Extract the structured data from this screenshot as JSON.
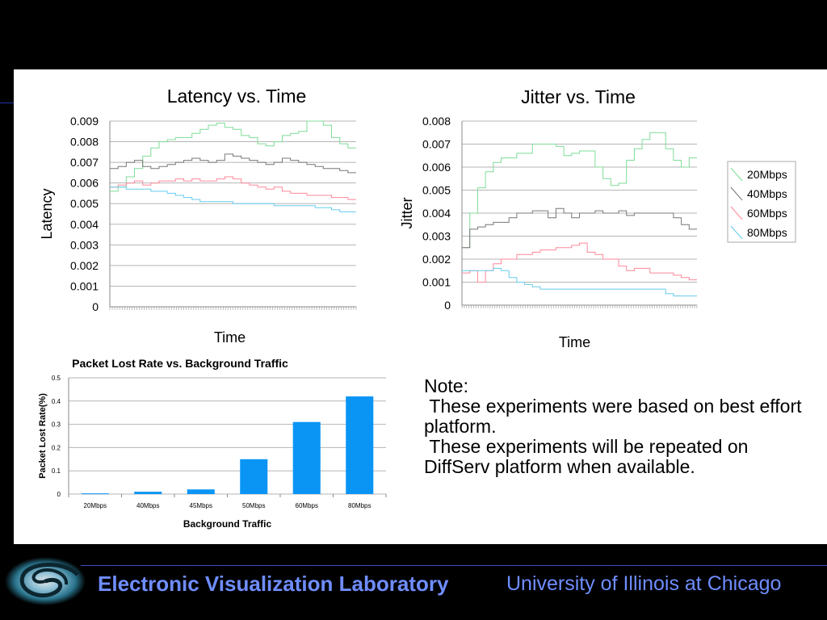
{
  "footer": {
    "lab": "Electronic Visualization Laboratory",
    "university": "University of Illinois at Chicago"
  },
  "note": {
    "heading": "Note:",
    "line1": " These experiments were based on best effort platform.",
    "line2": " These experiments will be repeated on DiffServ platform when available."
  },
  "colors": {
    "20Mbps": "#7fdc98",
    "40Mbps": "#777777",
    "60Mbps": "#ff8899",
    "80Mbps": "#66ccee",
    "bar": "#0a95f5"
  },
  "chart_data": [
    {
      "type": "line",
      "title": "Latency vs. Time",
      "xlabel": "Time",
      "ylabel": "Latency",
      "ylim": [
        0,
        0.009
      ],
      "yticks": [
        "0",
        "0.001",
        "0.002",
        "0.003",
        "0.004",
        "0.005",
        "0.006",
        "0.007",
        "0.008",
        "0.009"
      ],
      "grid": true,
      "series": [
        {
          "name": "20Mbps",
          "values": [
            0.0056,
            0.0058,
            0.0063,
            0.0067,
            0.0073,
            0.0077,
            0.008,
            0.0081,
            0.0082,
            0.0082,
            0.0084,
            0.0086,
            0.0088,
            0.0089,
            0.0087,
            0.0086,
            0.0083,
            0.0082,
            0.0079,
            0.0078,
            0.008,
            0.0083,
            0.0084,
            0.0085,
            0.009,
            0.009,
            0.0088,
            0.0082,
            0.0079,
            0.0077
          ]
        },
        {
          "name": "40Mbps",
          "values": [
            0.0067,
            0.0068,
            0.007,
            0.0071,
            0.0068,
            0.0067,
            0.0068,
            0.0069,
            0.007,
            0.0071,
            0.0072,
            0.0071,
            0.007,
            0.0071,
            0.0074,
            0.0073,
            0.0072,
            0.0071,
            0.007,
            0.0069,
            0.007,
            0.0072,
            0.0071,
            0.007,
            0.0069,
            0.0068,
            0.0067,
            0.0067,
            0.0066,
            0.0065
          ]
        },
        {
          "name": "60Mbps",
          "values": [
            0.0058,
            0.0059,
            0.006,
            0.0061,
            0.0059,
            0.006,
            0.0061,
            0.0061,
            0.0062,
            0.0061,
            0.0062,
            0.0061,
            0.0061,
            0.0062,
            0.0063,
            0.0062,
            0.006,
            0.0059,
            0.0058,
            0.0057,
            0.0058,
            0.0056,
            0.0055,
            0.0055,
            0.0054,
            0.0054,
            0.0054,
            0.0053,
            0.0053,
            0.0052
          ]
        },
        {
          "name": "80Mbps",
          "values": [
            0.0058,
            0.0058,
            0.0057,
            0.0057,
            0.0057,
            0.0056,
            0.0056,
            0.0055,
            0.0054,
            0.0053,
            0.0052,
            0.0051,
            0.0051,
            0.0051,
            0.0051,
            0.005,
            0.005,
            0.005,
            0.005,
            0.005,
            0.0049,
            0.0049,
            0.0049,
            0.0049,
            0.0049,
            0.0048,
            0.0048,
            0.0047,
            0.0046,
            0.0046
          ]
        }
      ]
    },
    {
      "type": "line",
      "title": "Jitter vs. Time",
      "xlabel": "Time",
      "ylabel": "Jitter",
      "ylim": [
        0,
        0.008
      ],
      "yticks": [
        "0",
        "0.001",
        "0.002",
        "0.003",
        "0.004",
        "0.005",
        "0.006",
        "0.007",
        "0.008"
      ],
      "grid": true,
      "legend": [
        "20Mbps",
        "40Mbps",
        "60Mbps",
        "80Mbps"
      ],
      "legend_position": "right",
      "series": [
        {
          "name": "20Mbps",
          "values": [
            0.0025,
            0.004,
            0.0051,
            0.0058,
            0.0062,
            0.0064,
            0.0064,
            0.0066,
            0.0066,
            0.007,
            0.007,
            0.007,
            0.0069,
            0.0065,
            0.0066,
            0.0067,
            0.0067,
            0.006,
            0.0055,
            0.0052,
            0.0053,
            0.0063,
            0.0068,
            0.0072,
            0.0075,
            0.0075,
            0.0068,
            0.0063,
            0.006,
            0.0064
          ]
        },
        {
          "name": "40Mbps",
          "values": [
            0.0025,
            0.0033,
            0.0034,
            0.0035,
            0.0036,
            0.0036,
            0.0038,
            0.004,
            0.004,
            0.0041,
            0.0041,
            0.0038,
            0.0042,
            0.004,
            0.0038,
            0.004,
            0.004,
            0.0041,
            0.004,
            0.004,
            0.0041,
            0.0039,
            0.004,
            0.004,
            0.004,
            0.004,
            0.004,
            0.0038,
            0.0035,
            0.0033
          ]
        },
        {
          "name": "60Mbps",
          "values": [
            0.0014,
            0.0015,
            0.001,
            0.0015,
            0.0018,
            0.002,
            0.002,
            0.0022,
            0.0022,
            0.0023,
            0.0024,
            0.0024,
            0.0025,
            0.0025,
            0.0026,
            0.0027,
            0.0023,
            0.0022,
            0.002,
            0.002,
            0.0017,
            0.0015,
            0.0016,
            0.0016,
            0.0014,
            0.0014,
            0.0014,
            0.0013,
            0.0012,
            0.0011
          ]
        },
        {
          "name": "80Mbps",
          "values": [
            0.0015,
            0.0015,
            0.0015,
            0.0015,
            0.0016,
            0.0015,
            0.0012,
            0.001,
            0.0009,
            0.0008,
            0.0007,
            0.0007,
            0.0007,
            0.0007,
            0.0007,
            0.0007,
            0.0007,
            0.0007,
            0.0007,
            0.0007,
            0.0007,
            0.0007,
            0.0007,
            0.0007,
            0.0007,
            0.0007,
            0.0005,
            0.0004,
            0.0004,
            0.0004
          ]
        }
      ]
    },
    {
      "type": "bar",
      "title": "Packet Lost Rate vs. Background Traffic",
      "xlabel": "Background Traffic",
      "ylabel": "Packet Lost Rate(%)",
      "ylim": [
        0,
        0.5
      ],
      "yticks": [
        "0",
        "0.1",
        "0.2",
        "0.3",
        "0.4",
        "0.5"
      ],
      "grid": true,
      "categories": [
        "20Mbps",
        "40Mbps",
        "45Mbps",
        "50Mbps",
        "60Mbps",
        "80Mbps"
      ],
      "values": [
        0.003,
        0.01,
        0.02,
        0.15,
        0.31,
        0.42
      ]
    }
  ]
}
